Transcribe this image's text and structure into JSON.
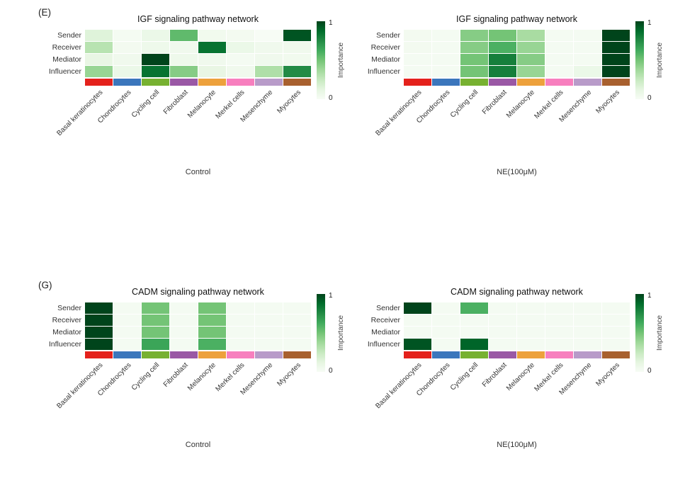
{
  "figure": {
    "panel_labels": [
      "(E)",
      "(G)"
    ],
    "background": "#ffffff"
  },
  "cell_types": [
    "Basal keratinocytes",
    "Chondrocytes",
    "Cycling cell",
    "Fibroblast",
    "Melanocyte",
    "Merkel cells",
    "Mesenchyme",
    "Myocytes"
  ],
  "cell_type_colors": [
    "#E4211C",
    "#3B76BC",
    "#77B131",
    "#9A58A5",
    "#EDA13C",
    "#F77FBE",
    "#B89BC9",
    "#A8602F"
  ],
  "heatmap_colormap": {
    "name": "Greens",
    "low": "#F7FCF5",
    "high": "#00441B"
  },
  "chart_data": [
    {
      "type": "heatmap",
      "panel": "(E)",
      "title": "IGF signaling pathway network",
      "caption": "Control",
      "rows": [
        "Sender",
        "Receiver",
        "Mediator",
        "Influencer"
      ],
      "categories": [
        "Basal keratinocytes",
        "Chondrocytes",
        "Cycling cell",
        "Fibroblast",
        "Melanocyte",
        "Merkel cells",
        "Mesenchyme",
        "Myocytes"
      ],
      "values": [
        [
          0.15,
          0.02,
          0.08,
          0.55,
          0.04,
          0.03,
          0.0,
          0.95
        ],
        [
          0.3,
          0.03,
          0.06,
          0.05,
          0.85,
          0.08,
          0.05,
          0.05
        ],
        [
          0.1,
          0.05,
          1.0,
          0.06,
          0.05,
          0.02,
          0.05,
          0.04
        ],
        [
          0.4,
          0.08,
          0.85,
          0.45,
          0.1,
          0.05,
          0.33,
          0.75
        ]
      ],
      "zlim": [
        0,
        1
      ],
      "colorbar": {
        "label": "Importance",
        "max": "1",
        "min": "0"
      }
    },
    {
      "type": "heatmap",
      "panel": "(E)",
      "title": "IGF signaling pathway network",
      "caption": "NE(100μM)",
      "rows": [
        "Sender",
        "Receiver",
        "Mediator",
        "Influencer"
      ],
      "categories": [
        "Basal keratinocytes",
        "Chondrocytes",
        "Cycling cell",
        "Fibroblast",
        "Melanocyte",
        "Merkel cells",
        "Mesenchyme",
        "Myocytes"
      ],
      "values": [
        [
          0.03,
          0.02,
          0.45,
          0.5,
          0.35,
          0.02,
          0.02,
          1.0
        ],
        [
          0.03,
          0.02,
          0.45,
          0.6,
          0.4,
          0.02,
          0.02,
          1.0
        ],
        [
          0.02,
          0.02,
          0.5,
          0.8,
          0.45,
          0.02,
          0.02,
          1.0
        ],
        [
          0.02,
          0.02,
          0.5,
          0.8,
          0.4,
          0.02,
          0.08,
          1.0
        ]
      ],
      "zlim": [
        0,
        1
      ],
      "colorbar": {
        "label": "Importance",
        "max": "1",
        "min": "0"
      }
    },
    {
      "type": "heatmap",
      "panel": "(G)",
      "title": "CADM signaling pathway network",
      "caption": "Control",
      "rows": [
        "Sender",
        "Receiver",
        "Mediator",
        "Influencer"
      ],
      "categories": [
        "Basal keratinocytes",
        "Chondrocytes",
        "Cycling cell",
        "Fibroblast",
        "Melanocyte",
        "Merkel cells",
        "Mesenchyme",
        "Myocytes"
      ],
      "values": [
        [
          1.0,
          0.02,
          0.5,
          0.02,
          0.5,
          0.02,
          0.02,
          0.02
        ],
        [
          1.0,
          0.02,
          0.5,
          0.02,
          0.5,
          0.02,
          0.02,
          0.02
        ],
        [
          1.0,
          0.02,
          0.5,
          0.02,
          0.5,
          0.02,
          0.02,
          0.02
        ],
        [
          1.0,
          0.02,
          0.65,
          0.02,
          0.6,
          0.02,
          0.02,
          0.02
        ]
      ],
      "zlim": [
        0,
        1
      ],
      "colorbar": {
        "label": "Importance",
        "max": "1",
        "min": "0"
      }
    },
    {
      "type": "heatmap",
      "panel": "(G)",
      "title": "CADM signaling pathway network",
      "caption": "NE(100μM)",
      "rows": [
        "Sender",
        "Receiver",
        "Mediator",
        "Influencer"
      ],
      "categories": [
        "Basal keratinocytes",
        "Chondrocytes",
        "Cycling cell",
        "Fibroblast",
        "Melanocyte",
        "Merkel cells",
        "Mesenchyme",
        "Myocytes"
      ],
      "values": [
        [
          1.0,
          0.02,
          0.6,
          0.02,
          0.02,
          0.02,
          0.02,
          0.02
        ],
        [
          0.02,
          0.02,
          0.02,
          0.02,
          0.02,
          0.02,
          0.02,
          0.02
        ],
        [
          0.02,
          0.02,
          0.02,
          0.02,
          0.02,
          0.02,
          0.02,
          0.02
        ],
        [
          0.95,
          0.02,
          0.9,
          0.02,
          0.02,
          0.02,
          0.02,
          0.02
        ]
      ],
      "zlim": [
        0,
        1
      ],
      "colorbar": {
        "label": "Importance",
        "max": "1",
        "min": "0"
      }
    }
  ]
}
